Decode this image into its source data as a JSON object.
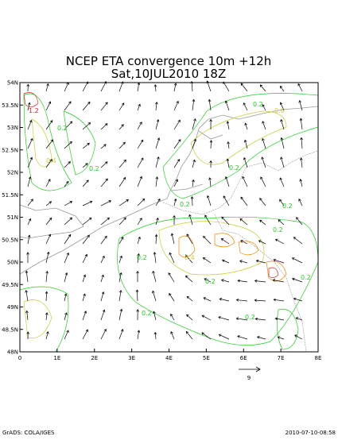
{
  "title_line1": "NCEP ETA convergence 10m +12h",
  "title_line2": "Sat,10JUL2010 18Z",
  "lon_ticks": [
    {
      "value": 0,
      "label": "0"
    },
    {
      "value": 1,
      "label": "1E"
    },
    {
      "value": 2,
      "label": "2E"
    },
    {
      "value": 3,
      "label": "3E"
    },
    {
      "value": 4,
      "label": "4E"
    },
    {
      "value": 5,
      "label": "5E"
    },
    {
      "value": 6,
      "label": "6E"
    },
    {
      "value": 7,
      "label": "7E"
    },
    {
      "value": 8,
      "label": "8E"
    }
  ],
  "lat_ticks": [
    {
      "value": 48,
      "label": "48N"
    },
    {
      "value": 48.5,
      "label": "48.5N"
    },
    {
      "value": 49,
      "label": "49N"
    },
    {
      "value": 49.5,
      "label": "49.5N"
    },
    {
      "value": 50,
      "label": "50N"
    },
    {
      "value": 50.5,
      "label": "50.5N"
    },
    {
      "value": 51,
      "label": "51N"
    },
    {
      "value": 51.5,
      "label": "51.5N"
    },
    {
      "value": 52,
      "label": "52N"
    },
    {
      "value": 52.5,
      "label": "52.5N"
    },
    {
      "value": 53,
      "label": "53N"
    },
    {
      "value": 53.5,
      "label": "53.5N"
    },
    {
      "value": 54,
      "label": "54N"
    }
  ],
  "reference_vector_label": "9",
  "contour_labels": [
    "1.2",
    "0.2",
    "0.2",
    "0.2",
    "0.6",
    "0.4",
    "0.2",
    "0.2",
    "0.2",
    "0.2",
    "0.4",
    "0.2",
    "0.2",
    "0.2",
    "0.2",
    "0.2"
  ],
  "footer_left": "GrADS: COLA/IGES",
  "footer_right": "2010-07-10-08:58"
}
